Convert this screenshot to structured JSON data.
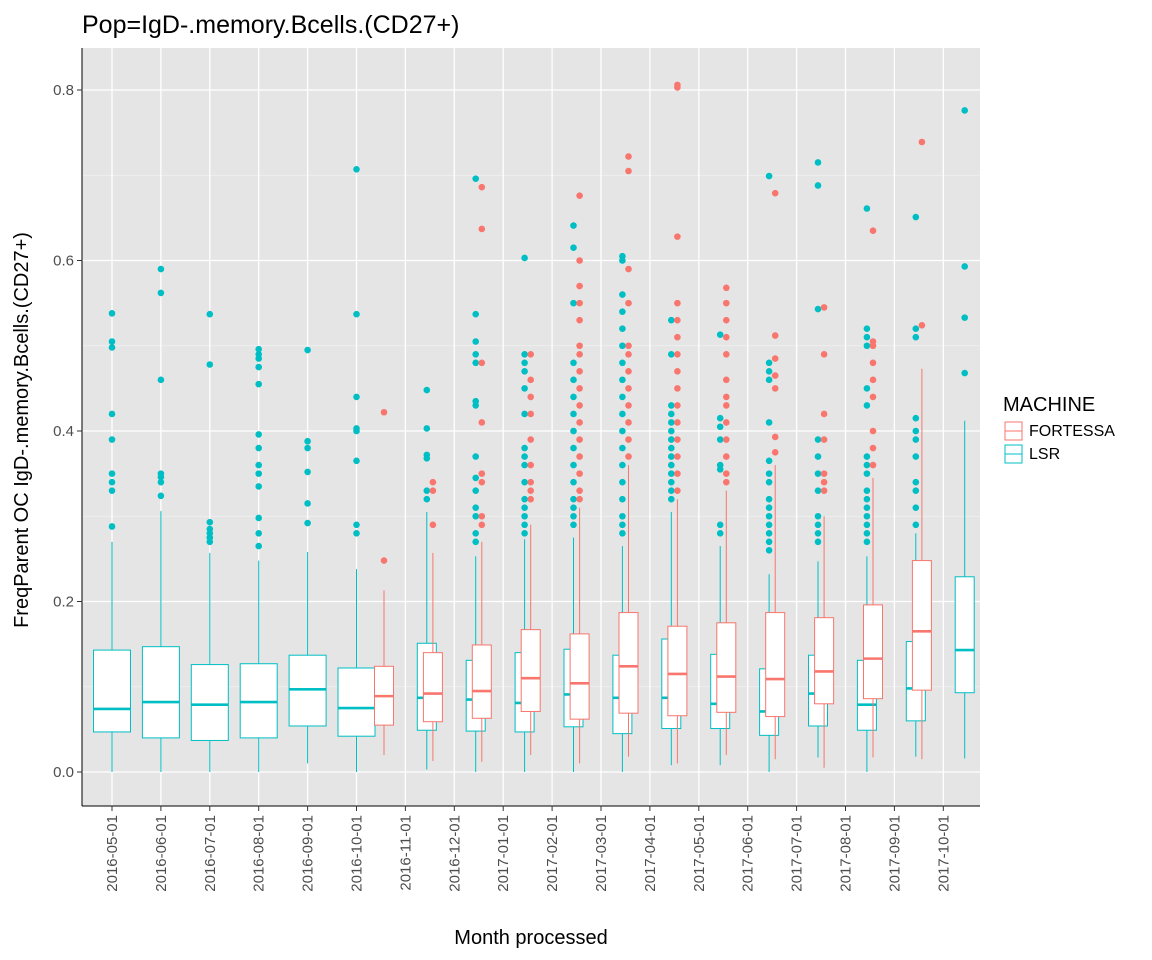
{
  "chart_data": {
    "type": "boxplot",
    "title": "Pop=IgD-.memory.Bcells.(CD27+)",
    "xlabel": "Month processed",
    "ylabel": "FreqParent OC  IgD-.memory.Bcells.(CD27+)",
    "ylim": [
      -0.04,
      0.85
    ],
    "yticks": [
      0.0,
      0.2,
      0.4,
      0.6,
      0.8
    ],
    "ytick_labels": [
      "0.0",
      "0.2",
      "0.4",
      "0.6",
      "0.8"
    ],
    "grid": true,
    "background": "#e5e5e5",
    "legend": {
      "title": "MACHINE",
      "placement": "right",
      "entries": [
        {
          "label": "FORTESSA",
          "color": "#f8766d"
        },
        {
          "label": "LSR",
          "color": "#00bfc4"
        }
      ]
    },
    "categories": [
      "2016-05-01",
      "2016-06-01",
      "2016-07-01",
      "2016-08-01",
      "2016-09-01",
      "2016-10-01",
      "2016-11-01",
      "2016-12-01",
      "2017-01-01",
      "2017-02-01",
      "2017-03-01",
      "2017-04-01",
      "2017-05-01",
      "2017-06-01",
      "2017-07-01",
      "2017-08-01",
      "2017-09-01",
      "2017-10-01"
    ],
    "series": [
      {
        "name": "FORTESSA",
        "color": "#f8766d",
        "boxes": [
          null,
          null,
          null,
          null,
          null,
          null,
          {
            "min": 0.02,
            "q1": 0.055,
            "median": 0.089,
            "q3": 0.124,
            "max": 0.213,
            "outliers": [
              0.248,
              0.422
            ]
          },
          {
            "min": 0.013,
            "q1": 0.059,
            "median": 0.092,
            "q3": 0.14,
            "max": 0.257,
            "outliers": [
              0.29,
              0.33,
              0.34
            ]
          },
          {
            "min": 0.012,
            "q1": 0.063,
            "median": 0.095,
            "q3": 0.149,
            "max": 0.27,
            "outliers": [
              0.29,
              0.3,
              0.34,
              0.35,
              0.41,
              0.48,
              0.637,
              0.686
            ]
          },
          {
            "min": 0.02,
            "q1": 0.071,
            "median": 0.11,
            "q3": 0.167,
            "max": 0.29,
            "outliers": [
              0.32,
              0.33,
              0.34,
              0.36,
              0.39,
              0.42,
              0.44,
              0.46,
              0.49
            ]
          },
          {
            "min": 0.01,
            "q1": 0.062,
            "median": 0.104,
            "q3": 0.162,
            "max": 0.31,
            "outliers": [
              0.32,
              0.33,
              0.35,
              0.37,
              0.39,
              0.41,
              0.43,
              0.45,
              0.47,
              0.49,
              0.5,
              0.53,
              0.55,
              0.57,
              0.6,
              0.676
            ]
          },
          {
            "min": 0.018,
            "q1": 0.069,
            "median": 0.124,
            "q3": 0.187,
            "max": 0.36,
            "outliers": [
              0.37,
              0.39,
              0.41,
              0.43,
              0.45,
              0.47,
              0.49,
              0.5,
              0.55,
              0.59,
              0.705,
              0.722
            ]
          },
          {
            "min": 0.01,
            "q1": 0.066,
            "median": 0.115,
            "q3": 0.171,
            "max": 0.32,
            "outliers": [
              0.33,
              0.35,
              0.37,
              0.39,
              0.41,
              0.43,
              0.45,
              0.47,
              0.49,
              0.51,
              0.53,
              0.55,
              0.628,
              0.803,
              0.806
            ]
          },
          {
            "min": 0.02,
            "q1": 0.07,
            "median": 0.112,
            "q3": 0.175,
            "max": 0.33,
            "outliers": [
              0.34,
              0.35,
              0.37,
              0.39,
              0.41,
              0.43,
              0.44,
              0.46,
              0.49,
              0.51,
              0.53,
              0.55,
              0.568
            ]
          },
          {
            "min": 0.015,
            "q1": 0.065,
            "median": 0.109,
            "q3": 0.187,
            "max": 0.36,
            "outliers": [
              0.375,
              0.393,
              0.45,
              0.465,
              0.485,
              0.512,
              0.679
            ]
          },
          {
            "min": 0.005,
            "q1": 0.08,
            "median": 0.118,
            "q3": 0.181,
            "max": 0.3,
            "outliers": [
              0.33,
              0.34,
              0.35,
              0.39,
              0.42,
              0.49,
              0.545
            ]
          },
          {
            "min": 0.017,
            "q1": 0.086,
            "median": 0.133,
            "q3": 0.196,
            "max": 0.345,
            "outliers": [
              0.36,
              0.38,
              0.4,
              0.44,
              0.46,
              0.48,
              0.5,
              0.505,
              0.635
            ]
          },
          {
            "min": 0.015,
            "q1": 0.096,
            "median": 0.165,
            "q3": 0.248,
            "max": 0.473,
            "outliers": [
              0.524,
              0.739
            ]
          }
        ]
      },
      {
        "name": "LSR",
        "color": "#00bfc4",
        "boxes": [
          {
            "min": 0.0,
            "q1": 0.047,
            "median": 0.074,
            "q3": 0.143,
            "max": 0.27,
            "outliers": [
              0.288,
              0.33,
              0.34,
              0.35,
              0.39,
              0.42,
              0.498,
              0.505,
              0.538
            ]
          },
          {
            "min": 0.0,
            "q1": 0.04,
            "median": 0.082,
            "q3": 0.147,
            "max": 0.306,
            "outliers": [
              0.324,
              0.34,
              0.346,
              0.35,
              0.46,
              0.562,
              0.59
            ]
          },
          {
            "min": 0.0,
            "q1": 0.037,
            "median": 0.079,
            "q3": 0.126,
            "max": 0.257,
            "outliers": [
              0.27,
              0.275,
              0.28,
              0.285,
              0.293,
              0.478,
              0.537
            ]
          },
          {
            "min": 0.0,
            "q1": 0.04,
            "median": 0.082,
            "q3": 0.127,
            "max": 0.248,
            "outliers": [
              0.265,
              0.28,
              0.298,
              0.335,
              0.35,
              0.36,
              0.38,
              0.396,
              0.455,
              0.475,
              0.485,
              0.49,
              0.496
            ]
          },
          {
            "min": 0.01,
            "q1": 0.054,
            "median": 0.097,
            "q3": 0.137,
            "max": 0.258,
            "outliers": [
              0.292,
              0.315,
              0.352,
              0.38,
              0.388,
              0.495
            ]
          },
          {
            "min": 0.0,
            "q1": 0.042,
            "median": 0.075,
            "q3": 0.122,
            "max": 0.238,
            "outliers": [
              0.28,
              0.29,
              0.365,
              0.4,
              0.403,
              0.44,
              0.537,
              0.707
            ]
          },
          {
            "min": 0.003,
            "q1": 0.049,
            "median": 0.087,
            "q3": 0.151,
            "max": 0.305,
            "outliers": [
              0.32,
              0.33,
              0.368,
              0.372,
              0.403,
              0.448
            ]
          },
          {
            "min": 0.0,
            "q1": 0.048,
            "median": 0.085,
            "q3": 0.131,
            "max": 0.253,
            "outliers": [
              0.27,
              0.28,
              0.3,
              0.31,
              0.33,
              0.345,
              0.37,
              0.43,
              0.435,
              0.48,
              0.49,
              0.505,
              0.537,
              0.696
            ]
          },
          {
            "min": 0.0,
            "q1": 0.047,
            "median": 0.081,
            "q3": 0.14,
            "max": 0.273,
            "outliers": [
              0.28,
              0.29,
              0.3,
              0.31,
              0.32,
              0.34,
              0.36,
              0.37,
              0.38,
              0.42,
              0.45,
              0.47,
              0.48,
              0.49,
              0.603
            ]
          },
          {
            "min": 0.0,
            "q1": 0.053,
            "median": 0.091,
            "q3": 0.144,
            "max": 0.275,
            "outliers": [
              0.29,
              0.3,
              0.31,
              0.32,
              0.34,
              0.36,
              0.38,
              0.4,
              0.42,
              0.44,
              0.46,
              0.48,
              0.55,
              0.615,
              0.641
            ]
          },
          {
            "min": 0.0,
            "q1": 0.045,
            "median": 0.087,
            "q3": 0.137,
            "max": 0.265,
            "outliers": [
              0.28,
              0.29,
              0.3,
              0.32,
              0.34,
              0.36,
              0.38,
              0.4,
              0.42,
              0.44,
              0.46,
              0.48,
              0.5,
              0.52,
              0.54,
              0.56,
              0.6,
              0.605
            ]
          },
          {
            "min": 0.008,
            "q1": 0.051,
            "median": 0.087,
            "q3": 0.156,
            "max": 0.305,
            "outliers": [
              0.32,
              0.33,
              0.34,
              0.35,
              0.36,
              0.37,
              0.38,
              0.39,
              0.4,
              0.41,
              0.42,
              0.43,
              0.49,
              0.53
            ]
          },
          {
            "min": 0.008,
            "q1": 0.051,
            "median": 0.08,
            "q3": 0.138,
            "max": 0.265,
            "outliers": [
              0.28,
              0.29,
              0.355,
              0.36,
              0.39,
              0.405,
              0.415,
              0.513
            ]
          },
          {
            "min": 0.0,
            "q1": 0.043,
            "median": 0.071,
            "q3": 0.121,
            "max": 0.232,
            "outliers": [
              0.26,
              0.27,
              0.28,
              0.29,
              0.3,
              0.31,
              0.32,
              0.34,
              0.35,
              0.365,
              0.41,
              0.46,
              0.47,
              0.48,
              0.699
            ]
          },
          {
            "min": 0.017,
            "q1": 0.054,
            "median": 0.092,
            "q3": 0.137,
            "max": 0.247,
            "outliers": [
              0.27,
              0.28,
              0.29,
              0.3,
              0.33,
              0.35,
              0.37,
              0.39,
              0.543,
              0.688,
              0.715
            ]
          },
          {
            "min": 0.0,
            "q1": 0.049,
            "median": 0.079,
            "q3": 0.131,
            "max": 0.253,
            "outliers": [
              0.27,
              0.28,
              0.29,
              0.3,
              0.31,
              0.32,
              0.33,
              0.35,
              0.36,
              0.37,
              0.43,
              0.45,
              0.5,
              0.51,
              0.52,
              0.661
            ]
          },
          {
            "min": 0.018,
            "q1": 0.06,
            "median": 0.098,
            "q3": 0.153,
            "max": 0.28,
            "outliers": [
              0.29,
              0.31,
              0.33,
              0.34,
              0.37,
              0.39,
              0.4,
              0.415,
              0.51,
              0.52,
              0.651
            ]
          },
          {
            "min": 0.016,
            "q1": 0.093,
            "median": 0.143,
            "q3": 0.229,
            "max": 0.412,
            "outliers": [
              0.468,
              0.533,
              0.593,
              0.776
            ]
          }
        ]
      }
    ]
  }
}
